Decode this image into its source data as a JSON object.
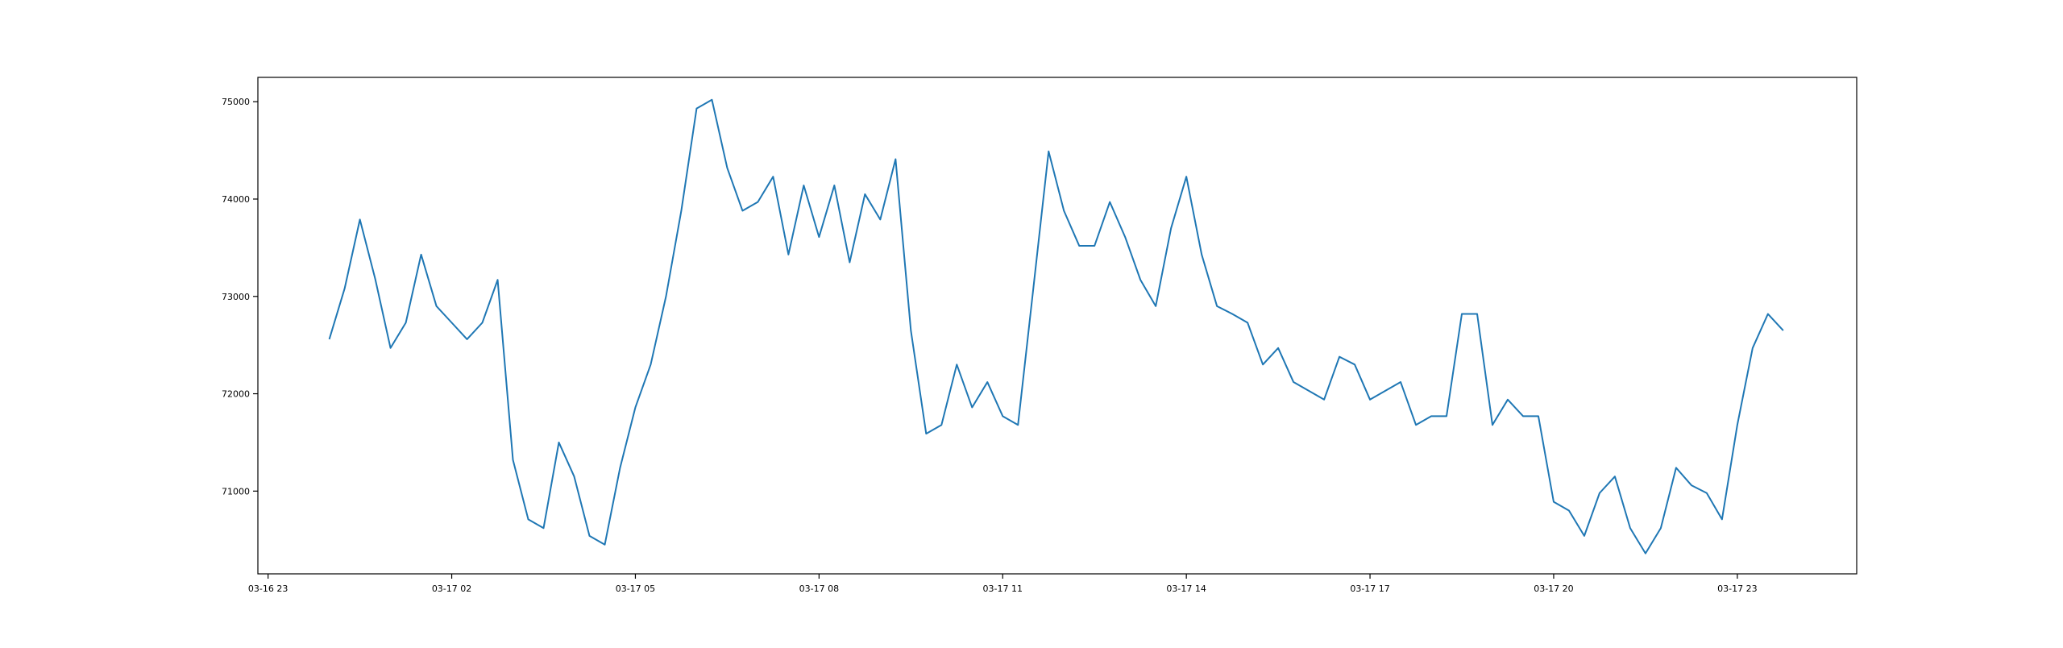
{
  "chart_data": {
    "type": "line",
    "title": "",
    "xlabel": "",
    "ylabel": "",
    "grid": false,
    "colors": {
      "line": "#1f77b4",
      "axes": "#000000",
      "background": "#ffffff"
    },
    "x_ticks": [
      "03-16 23",
      "03-17 02",
      "03-17 05",
      "03-17 08",
      "03-17 11",
      "03-17 14",
      "03-17 17",
      "03-17 20",
      "03-17 23"
    ],
    "y_ticks": [
      "71000",
      "72000",
      "73000",
      "74000",
      "75000"
    ],
    "xlim": [
      "2024-03-16 22:50",
      "2024-03-18 00:57"
    ],
    "ylim": [
      70150,
      75250
    ],
    "x_start": "2024-03-17 00:00",
    "x_step_minutes": 15,
    "series": [
      {
        "values": [
          72560,
          73080,
          73790,
          73180,
          72470,
          72730,
          73430,
          72900,
          72730,
          72560,
          72730,
          73170,
          71320,
          70710,
          70620,
          71500,
          71150,
          70540,
          70450,
          71240,
          71860,
          72300,
          73000,
          73880,
          74930,
          75020,
          74320,
          73880,
          73970,
          74230,
          73430,
          74140,
          73610,
          74140,
          73350,
          74050,
          73790,
          74410,
          72650,
          71590,
          71680,
          72300,
          71860,
          72120,
          71770,
          71680,
          73080,
          74490,
          73880,
          73520,
          73520,
          73970,
          73610,
          73170,
          72900,
          73700,
          74230,
          73430,
          72900,
          72820,
          72730,
          72300,
          72470,
          72120,
          72030,
          71940,
          72380,
          72300,
          71940,
          72030,
          72120,
          71680,
          71770,
          71770,
          72820,
          72820,
          71680,
          71940,
          71770,
          71770,
          70890,
          70800,
          70540,
          70980,
          71150,
          70620,
          70360,
          70620,
          71240,
          71060,
          70980,
          70710,
          71680,
          72470,
          72820,
          72650
        ]
      }
    ]
  }
}
